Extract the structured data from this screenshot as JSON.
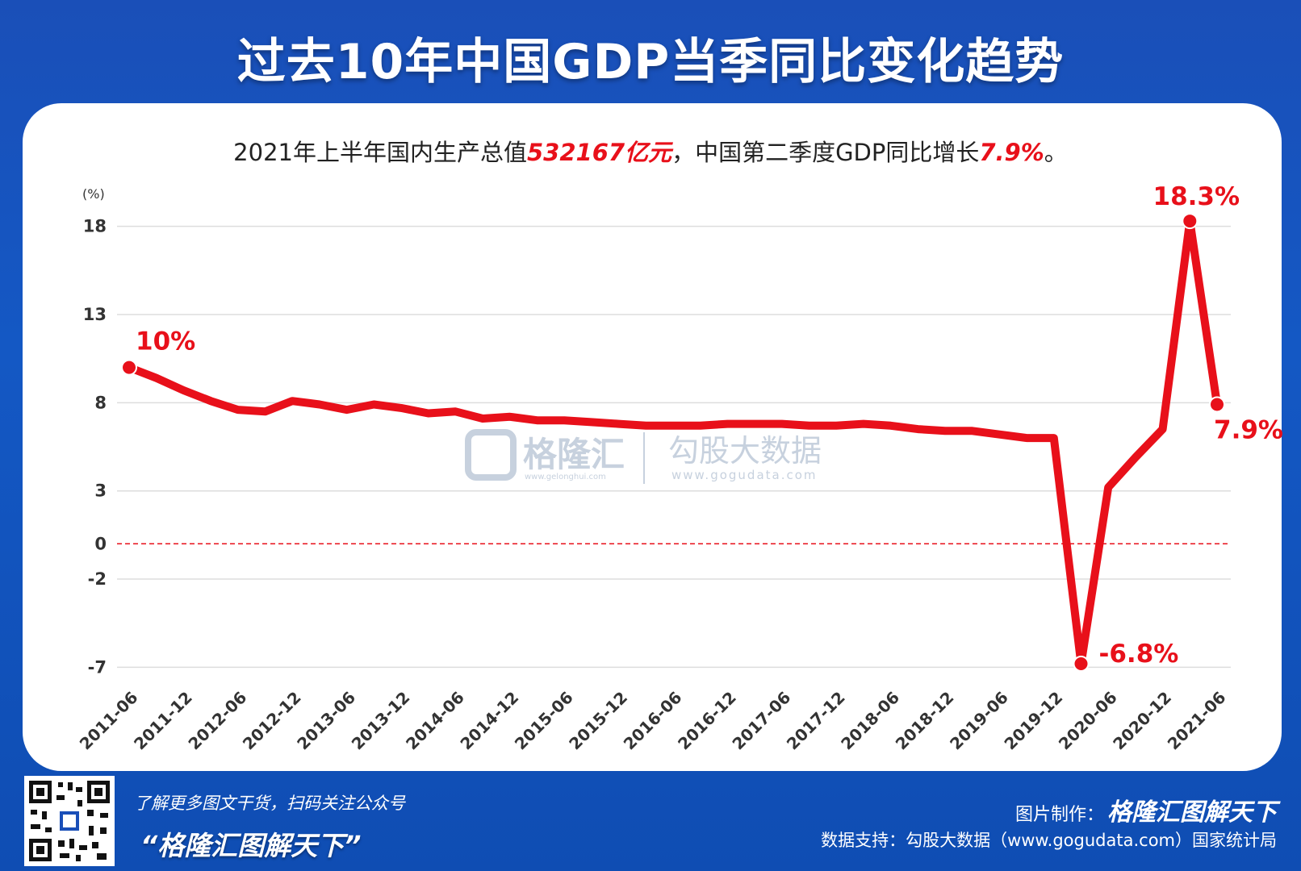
{
  "header": {
    "title": "过去10年中国GDP当季同比变化趋势"
  },
  "subtitle": {
    "prefix": "2021年上半年国内生产总值",
    "highlight1": "532167亿元",
    "middle": "，中国第二季度GDP同比增长",
    "highlight2": "7.9%",
    "suffix": "。"
  },
  "chart_data": {
    "type": "line",
    "unit_label": "(%)",
    "yticks": [
      18,
      13,
      8,
      3,
      0,
      -2,
      -7
    ],
    "ylim": [
      -7,
      18
    ],
    "x_tick_labels": [
      "2011-06",
      "2011-12",
      "2012-06",
      "2012-12",
      "2013-06",
      "2013-12",
      "2014-06",
      "2014-12",
      "2015-06",
      "2015-12",
      "2016-06",
      "2016-12",
      "2017-06",
      "2017-12",
      "2018-06",
      "2018-12",
      "2019-06",
      "2019-12",
      "2020-06",
      "2020-12",
      "2021-06"
    ],
    "x": [
      "2011-06",
      "2011-09",
      "2011-12",
      "2012-03",
      "2012-06",
      "2012-09",
      "2012-12",
      "2013-03",
      "2013-06",
      "2013-09",
      "2013-12",
      "2014-03",
      "2014-06",
      "2014-09",
      "2014-12",
      "2015-03",
      "2015-06",
      "2015-09",
      "2015-12",
      "2016-03",
      "2016-06",
      "2016-09",
      "2016-12",
      "2017-03",
      "2017-06",
      "2017-09",
      "2017-12",
      "2018-03",
      "2018-06",
      "2018-09",
      "2018-12",
      "2019-03",
      "2019-06",
      "2019-09",
      "2019-12",
      "2020-03",
      "2020-06",
      "2020-09",
      "2020-12",
      "2021-03",
      "2021-06"
    ],
    "series": [
      {
        "values": [
          10.0,
          9.4,
          8.7,
          8.1,
          7.6,
          7.5,
          8.1,
          7.9,
          7.6,
          7.9,
          7.7,
          7.4,
          7.5,
          7.1,
          7.2,
          7.0,
          7.0,
          6.9,
          6.8,
          6.7,
          6.7,
          6.7,
          6.8,
          6.8,
          6.8,
          6.7,
          6.7,
          6.8,
          6.7,
          6.5,
          6.4,
          6.4,
          6.2,
          6.0,
          6.0,
          -6.8,
          3.2,
          4.9,
          6.5,
          18.3,
          7.9
        ],
        "color": "#e8101a"
      }
    ],
    "zero_line": {
      "color": "#e8101a",
      "style": "dashed"
    },
    "annotations": [
      {
        "text": "10%",
        "x": "2011-06",
        "y": 10.0
      },
      {
        "text": "-6.8%",
        "x": "2020-03",
        "y": -6.8
      },
      {
        "text": "18.3%",
        "x": "2021-03",
        "y": 18.3
      },
      {
        "text": "7.9%",
        "x": "2021-06",
        "y": 7.9
      }
    ],
    "grid": true
  },
  "watermark": {
    "brand": "格隆汇",
    "brand_url": "www.gelonghui.com",
    "partner": "勾股大数据",
    "partner_url": "www.gogudata.com"
  },
  "footer": {
    "promo_line": "了解更多图文干货，扫码关注公众号",
    "promo_name": "“格隆汇图解天下”",
    "credit_label": "图片制作：",
    "credit_brand": "格隆汇图解天下",
    "source": "数据支持：勾股大数据（www.gogudata.com）国家统计局"
  }
}
